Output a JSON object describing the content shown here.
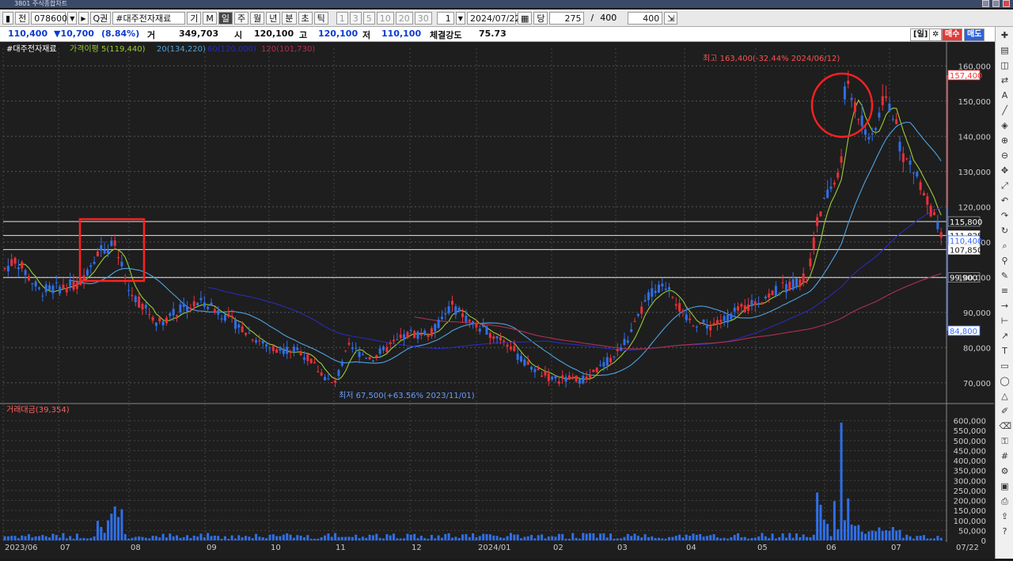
{
  "window": {
    "title": "3801 주식종합차트"
  },
  "toolbar": {
    "prev_label": "전",
    "code": "078600",
    "search_icon_label": "Q",
    "rights_label": "권",
    "name": "#대주전자재료",
    "period_labels": [
      "기",
      "M",
      "일",
      "주",
      "월",
      "년",
      "분",
      "초",
      "틱"
    ],
    "active_period": "일",
    "interval_options": [
      "1",
      "3",
      "5",
      "10",
      "20",
      "30"
    ],
    "multiplier": "1",
    "date": "2024/07/22",
    "date_mode_label": "당",
    "count": "275",
    "slash": "/",
    "total": "400",
    "view_count": "400"
  },
  "quote": {
    "price": "110,400",
    "change": "▼10,700",
    "change_pct": "(8.84%)",
    "volume_label": "거",
    "volume": "349,703",
    "open_label": "시",
    "open": "120,100",
    "high_label": "고",
    "high": "120,100",
    "low_label": "저",
    "low": "110,100",
    "strength_label": "체결강도",
    "strength": "75.73",
    "help_label": "[일]",
    "buy_label": "매수",
    "sell_label": "매도"
  },
  "chart_data": {
    "type": "candlestick",
    "instrument": "#대주전자재료",
    "legend": {
      "price_label": "가격이평",
      "ma": [
        {
          "period": 5,
          "value": "119,440",
          "color": "#9acd32"
        },
        {
          "period": 20,
          "value": "134,220",
          "color": "#4fa3e0"
        },
        {
          "period": 60,
          "value": "120,000",
          "color": "#2a2ab8"
        },
        {
          "period": 120,
          "value": "101,730",
          "color": "#b03050"
        }
      ]
    },
    "price_axis": {
      "min": 65000,
      "max": 165000,
      "ticks": [
        70000,
        80000,
        90000,
        100000,
        110000,
        120000,
        130000,
        140000,
        150000,
        160000
      ],
      "tick_labels": [
        "70,000",
        "80,000",
        "90,000",
        "100,000",
        "110,000",
        "120,000",
        "130,000",
        "140,000",
        "150,000",
        "160,000"
      ]
    },
    "x_axis_labels": [
      "2023/06",
      "07",
      "08",
      "09",
      "10",
      "11",
      "12",
      "2024/01",
      "02",
      "03",
      "04",
      "05",
      "06",
      "07"
    ],
    "last_date_label": "07/22",
    "annotations": {
      "high": "최고 163,400(-32.44% 2024/06/12)",
      "low": "최저 67,500(+63.56% 2023/11/01)"
    },
    "price_markers": [
      {
        "value": 157400,
        "label": "157,400",
        "color": "#ff3333"
      },
      {
        "value": 84800,
        "label": "84,800",
        "color": "#3b6cff"
      },
      {
        "value": 111825,
        "label": "111,825",
        "color": "#dddddd"
      },
      {
        "value": 110400,
        "label": "110,400",
        "color": "#3b6cff"
      },
      {
        "value": 107850,
        "label": "107,850",
        "color": "#dddddd"
      }
    ],
    "horizontal_lines": [
      {
        "value": 115800,
        "label": "115,800"
      },
      {
        "value": 111825,
        "label": ""
      },
      {
        "value": 107850,
        "label": ""
      },
      {
        "value": 99900,
        "label": "99,900"
      }
    ],
    "volume_panel": {
      "label": "거래대금",
      "current": "(39,354)",
      "ticks": [
        0,
        50000,
        100000,
        150000,
        200000,
        250000,
        300000,
        350000,
        400000,
        450000,
        500000,
        550000,
        600000
      ],
      "tick_labels": [
        "0",
        "50,000",
        "100,000",
        "150,000",
        "200,000",
        "250,000",
        "300,000",
        "350,000",
        "400,000",
        "450,000",
        "500,000",
        "550,000",
        "600,000"
      ]
    },
    "monthly_anchors": [
      {
        "month": "2023/06",
        "price": 102000,
        "vol": 30000
      },
      {
        "month": "07",
        "price": 97000,
        "vol": 35000
      },
      {
        "month": "08",
        "price": 108000,
        "vol": 120000
      },
      {
        "month": "09",
        "price": 90000,
        "vol": 60000
      },
      {
        "month": "10",
        "price": 82000,
        "vol": 40000
      },
      {
        "month": "11",
        "price": 70000,
        "vol": 45000
      },
      {
        "month": "12",
        "price": 82000,
        "vol": 40000
      },
      {
        "month": "2024/01",
        "price": 88000,
        "vol": 50000
      },
      {
        "month": "02",
        "price": 73000,
        "vol": 35000
      },
      {
        "month": "03",
        "price": 80000,
        "vol": 45000
      },
      {
        "month": "04",
        "price": 98000,
        "vol": 55000
      },
      {
        "month": "05",
        "price": 90000,
        "vol": 40000
      },
      {
        "month": "06",
        "price": 110000,
        "vol": 90000
      },
      {
        "month": "06-mid",
        "price": 155000,
        "vol": 560000
      },
      {
        "month": "07",
        "price": 145000,
        "vol": 100000
      },
      {
        "month": "07/22",
        "price": 110400,
        "vol": 39354
      }
    ],
    "colors": {
      "up": "#e8303a",
      "down": "#2f6fe8",
      "grid": "#555555",
      "text": "#cccccc"
    }
  },
  "tools": {
    "icons": [
      "crosshair-icon",
      "chart-type-icon",
      "indicator-icon",
      "compare-icon",
      "auto-icon",
      "trend-line-icon",
      "overlay-icon",
      "zoom-in-icon",
      "zoom-out-icon",
      "pan-icon",
      "fit-icon",
      "undo-icon",
      "redo-icon",
      "refresh-icon",
      "search-icon",
      "magnet-icon",
      "pen-icon",
      "fibonacci-icon",
      "ray-icon",
      "ruler-icon",
      "arrow-icon",
      "text-icon",
      "rect-icon",
      "ellipse-icon",
      "triangle-icon",
      "brush-icon",
      "eraser-icon",
      "lock-icon",
      "grid-icon",
      "settings-icon",
      "save-icon",
      "print-icon",
      "export-icon",
      "help-icon"
    ]
  }
}
